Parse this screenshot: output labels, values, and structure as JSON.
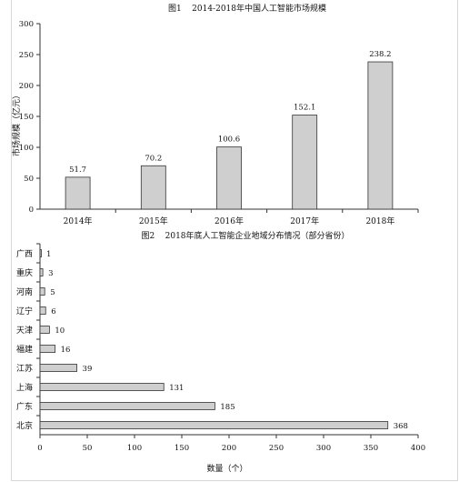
{
  "chart_data": [
    {
      "type": "bar",
      "title": "图1    2014-2018年中国人工智能市场规模",
      "ylabel": "市场规模（亿元）",
      "xlabel": "",
      "categories": [
        "2014年",
        "2015年",
        "2016年",
        "2017年",
        "2018年"
      ],
      "values": [
        51.7,
        70.2,
        100.6,
        152.1,
        238.2
      ],
      "value_labels": [
        "51.7",
        "70.2",
        "100.6",
        "152.1",
        "238.2"
      ],
      "ylim": [
        0,
        300
      ],
      "yticks": [
        0,
        50,
        100,
        150,
        200,
        250,
        300
      ],
      "grid": false,
      "bar_color": "#cfcfcf"
    },
    {
      "type": "bar",
      "orientation": "horizontal",
      "title": "图2    2018年底人工智能企业地域分布情况（部分省份）",
      "xlabel": "数量（个）",
      "ylabel": "",
      "categories": [
        "广西",
        "重庆",
        "河南",
        "辽宁",
        "天津",
        "福建",
        "江苏",
        "上海",
        "广东",
        "北京"
      ],
      "values": [
        1,
        3,
        5,
        6,
        10,
        16,
        39,
        131,
        185,
        368
      ],
      "value_labels": [
        "1",
        "3",
        "5",
        "6",
        "10",
        "16",
        "39",
        "131",
        "185",
        "368"
      ],
      "xlim": [
        0,
        400
      ],
      "xticks": [
        0,
        50,
        100,
        150,
        200,
        250,
        300,
        350,
        400
      ],
      "grid": false,
      "bar_color": "#cfcfcf"
    }
  ]
}
